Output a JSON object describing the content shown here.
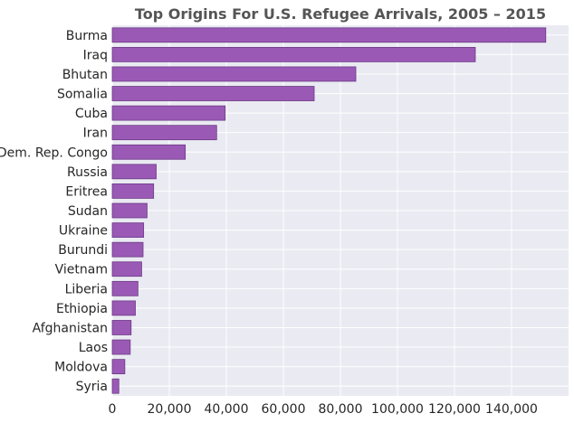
{
  "chart_data": {
    "type": "bar",
    "orientation": "horizontal",
    "title": "Top Origins For U.S. Refugee Arrivals, 2005 – 2015",
    "xlabel": "",
    "ylabel": "",
    "categories": [
      "Burma",
      "Iraq",
      "Bhutan",
      "Somalia",
      "Cuba",
      "Iran",
      "Dem. Rep. Congo",
      "Russia",
      "Eritrea",
      "Sudan",
      "Ukraine",
      "Burundi",
      "Vietnam",
      "Liberia",
      "Ethiopia",
      "Afghanistan",
      "Laos",
      "Moldova",
      "Syria"
    ],
    "values": [
      152000,
      127300,
      85400,
      70800,
      39600,
      36600,
      25600,
      15400,
      14500,
      12200,
      11000,
      10800,
      10300,
      9000,
      8100,
      6600,
      6300,
      4400,
      2300
    ],
    "xlim": [
      0,
      160000
    ],
    "x_ticks": [
      0,
      20000,
      40000,
      60000,
      80000,
      100000,
      120000,
      140000
    ],
    "x_tick_labels": [
      "0",
      "20,000",
      "40,000",
      "60,000",
      "80,000",
      "100,000",
      "120,000",
      "140,000"
    ],
    "grid": true,
    "legend": "none",
    "colors": {
      "bar_fill": "#9b59b6",
      "bar_edge": "#6a3a84",
      "plot_background": "#eaeaf2",
      "grid": "#ffffff",
      "title": "#555555",
      "text": "#262626"
    }
  }
}
